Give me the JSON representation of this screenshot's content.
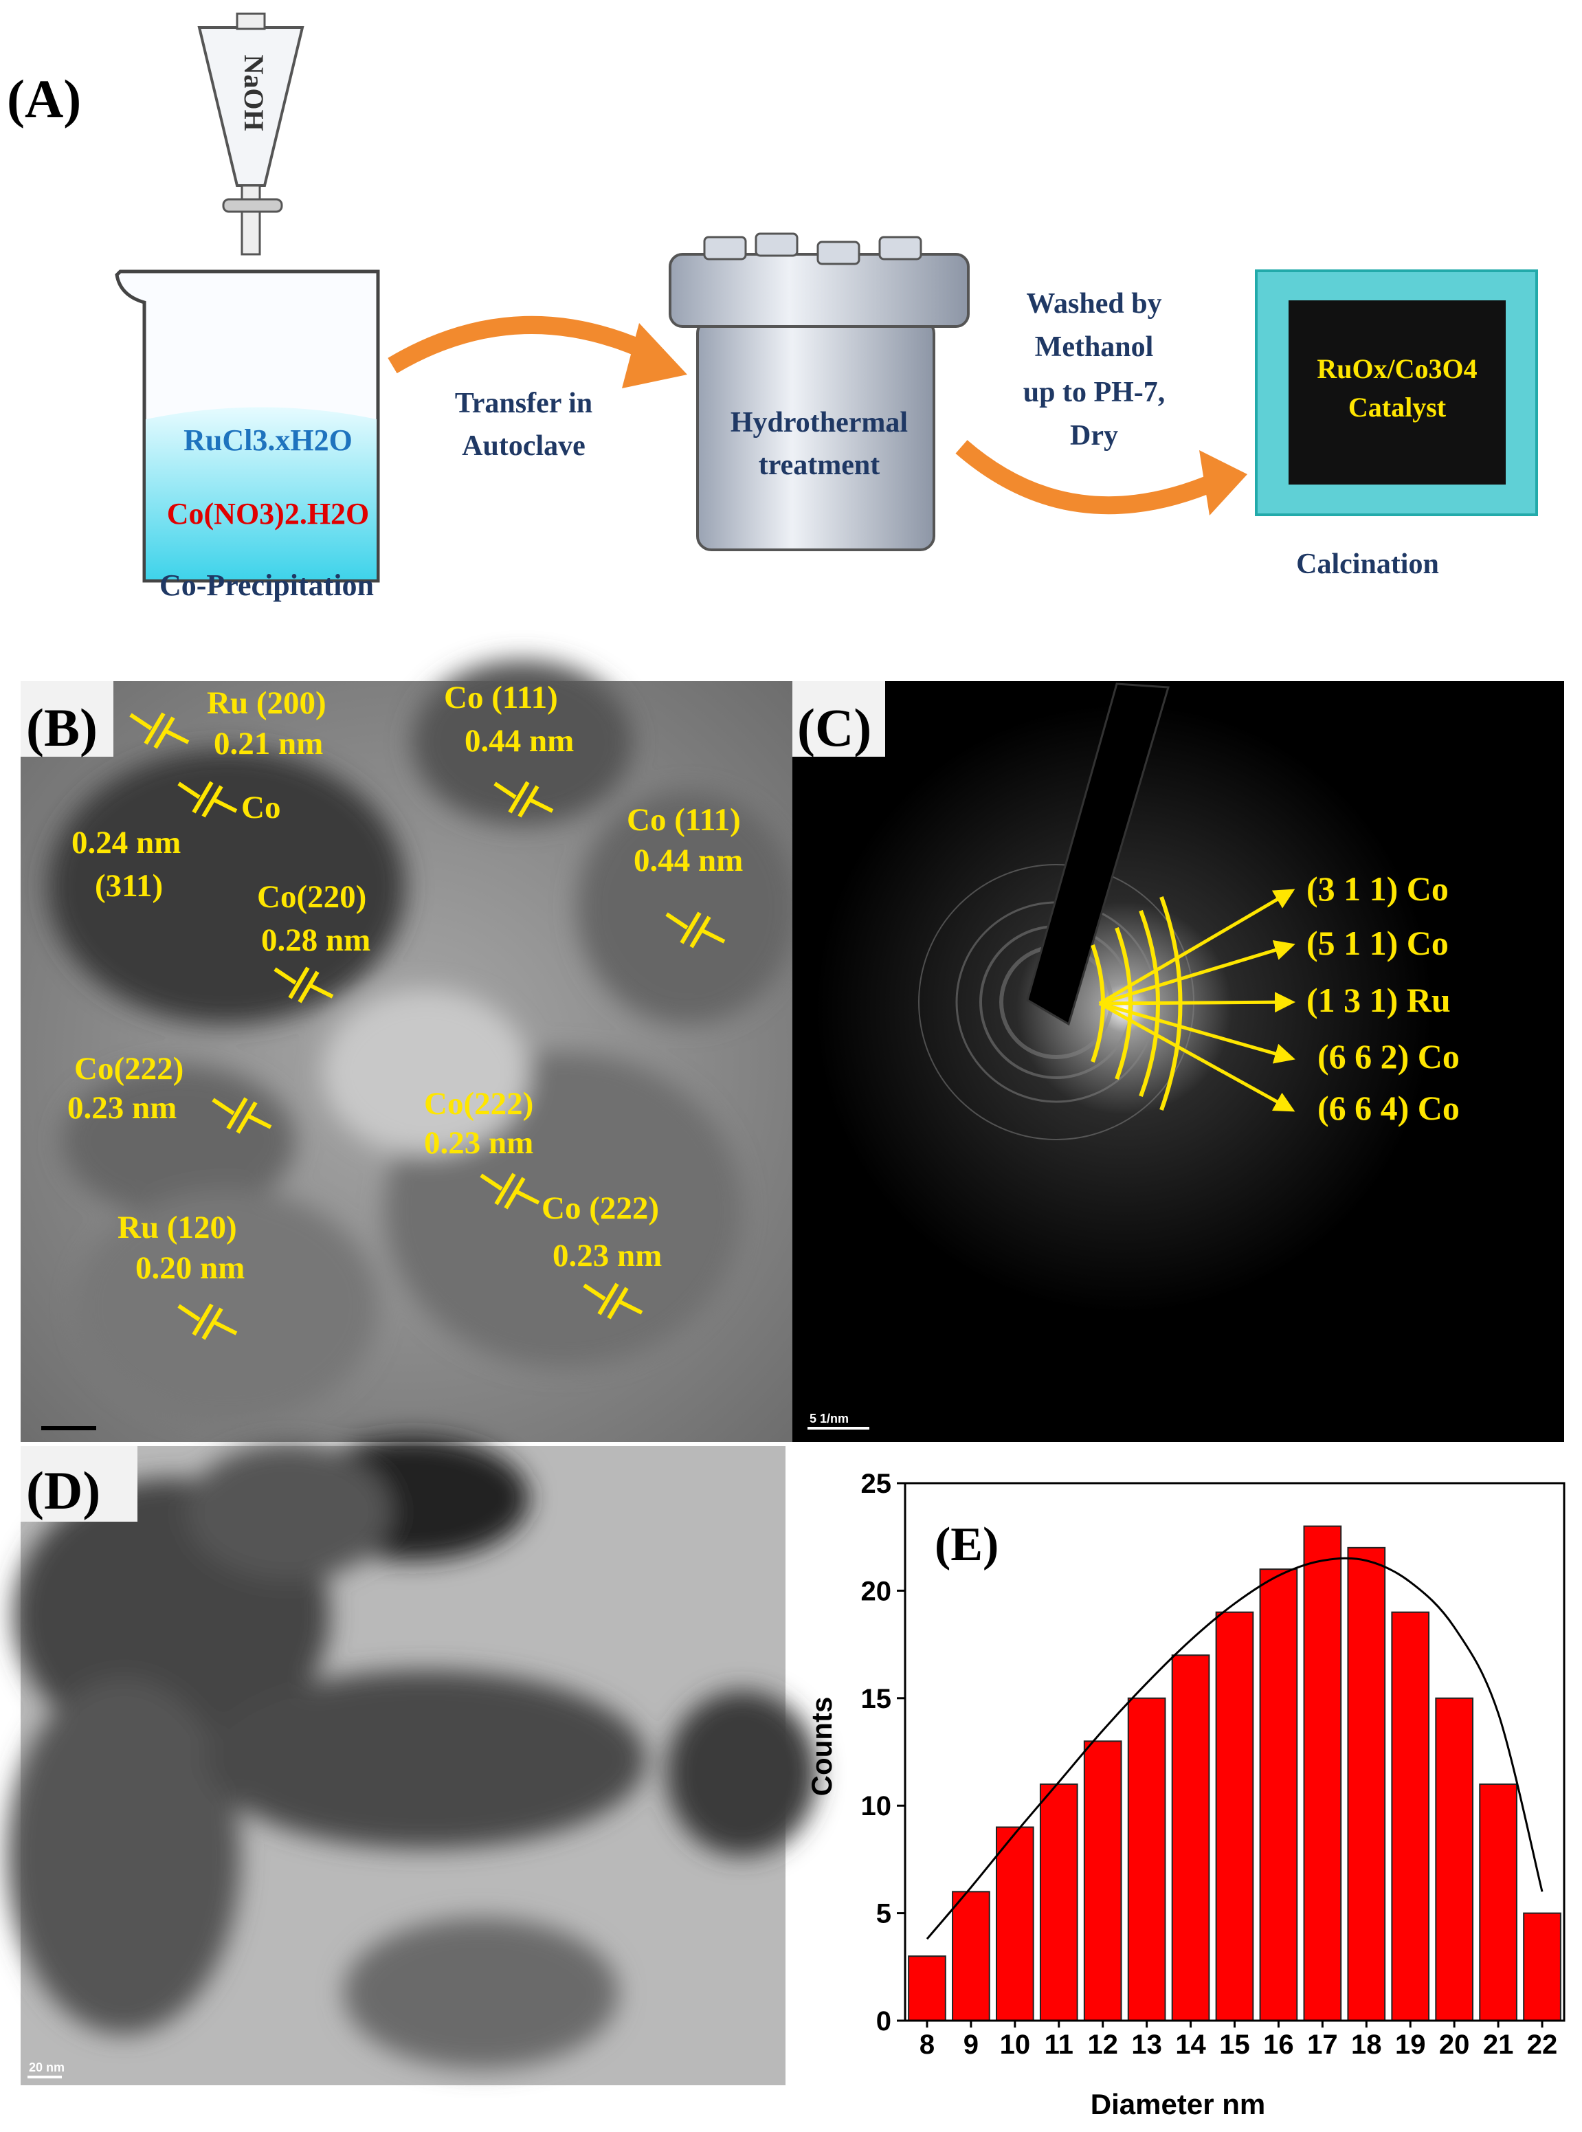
{
  "panel_a": {
    "label": "(A)",
    "funnel": "NaOH",
    "solution_top": "RuCl3.xH2O",
    "solution_bottom": "Co(NO3)2.H2O",
    "step1": "Co-Precipitation",
    "arrow1": [
      "Transfer in",
      "Autoclave"
    ],
    "autoclave": [
      "Hydrothermal",
      "treatment"
    ],
    "arrow2": [
      "Washed by",
      "Methanol",
      "up to PH-7,",
      "Dry"
    ],
    "catalyst": [
      "RuOx/Co3O4",
      "Catalyst"
    ],
    "step3": "Calcination"
  },
  "panel_b": {
    "label": "(B)",
    "labels": [
      [
        "Ru (200)",
        "0.21 nm"
      ],
      [
        "Co (111)",
        "0.44 nm"
      ],
      [
        "Co",
        "0.24 nm",
        "(311)"
      ],
      [
        "Co (111)",
        "0.44 nm"
      ],
      [
        "Co(220)",
        "0.28 nm"
      ],
      [
        "Co(222)",
        "0.23 nm"
      ],
      [
        "Co(222)",
        "0.23 nm"
      ],
      [
        "Co (222)",
        "0.23 nm"
      ],
      [
        "Ru (120)",
        "0.20 nm"
      ]
    ]
  },
  "panel_c": {
    "label": "(C)",
    "rings": [
      "(3 1 1) Co",
      "(5 1 1) Co",
      "(1 3 1) Ru",
      "(6 6 2) Co",
      "(6 6 4) Co"
    ],
    "scale_bar": "5 1/nm"
  },
  "panel_d": {
    "label": "(D)",
    "scale_bar": "20 nm"
  },
  "chart_data": {
    "type": "bar",
    "panel_label": "(E)",
    "x_label": "Diameter nm",
    "y_label": "Counts",
    "categories": [
      "8",
      "9",
      "10",
      "11",
      "12",
      "13",
      "14",
      "15",
      "16",
      "17",
      "18",
      "19",
      "20",
      "21",
      "22"
    ],
    "values": [
      3,
      6,
      9,
      11,
      13,
      15,
      17,
      19,
      21,
      23,
      22,
      19,
      15,
      11,
      5
    ],
    "color": "#ff0000",
    "fit": {
      "values": [
        3.8,
        6.2,
        8.7,
        11.1,
        13.5,
        15.7,
        17.7,
        19.4,
        20.7,
        21.4,
        21.4,
        20.4,
        18.3,
        14.3,
        6
      ]
    },
    "ylim": [
      0,
      25
    ],
    "yticks": [
      0,
      5,
      10,
      15,
      20,
      25
    ],
    "grid": false
  }
}
